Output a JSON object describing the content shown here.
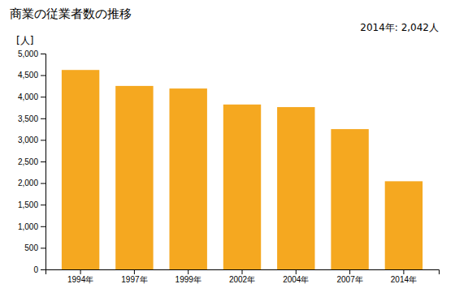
{
  "chart_data": {
    "type": "bar",
    "title": "商業の従業者数の推移",
    "ylabel": "[人]",
    "categories": [
      "1994年",
      "1997年",
      "1999年",
      "2002年",
      "2004年",
      "2007年",
      "2014年"
    ],
    "values": [
      4620,
      4250,
      4190,
      3820,
      3760,
      3250,
      2042
    ],
    "color": "#F5A820",
    "ylim": [
      0,
      5000
    ],
    "yticks": [
      0,
      500,
      {
        "value": 1000,
        "label": "1,000"
      },
      {
        "value": 1500,
        "label": "1,500"
      },
      {
        "value": 2000,
        "label": "2,000"
      },
      {
        "value": 2500,
        "label": "2,500"
      },
      {
        "value": 3000,
        "label": "3,000"
      },
      {
        "value": 3500,
        "label": "3,500"
      },
      {
        "value": 4000,
        "label": "4,000"
      },
      {
        "value": 4500,
        "label": "4,500"
      },
      {
        "value": 5000,
        "label": "5,000"
      }
    ],
    "annotations": [
      "2014年: 2,042人"
    ],
    "grid": false
  }
}
